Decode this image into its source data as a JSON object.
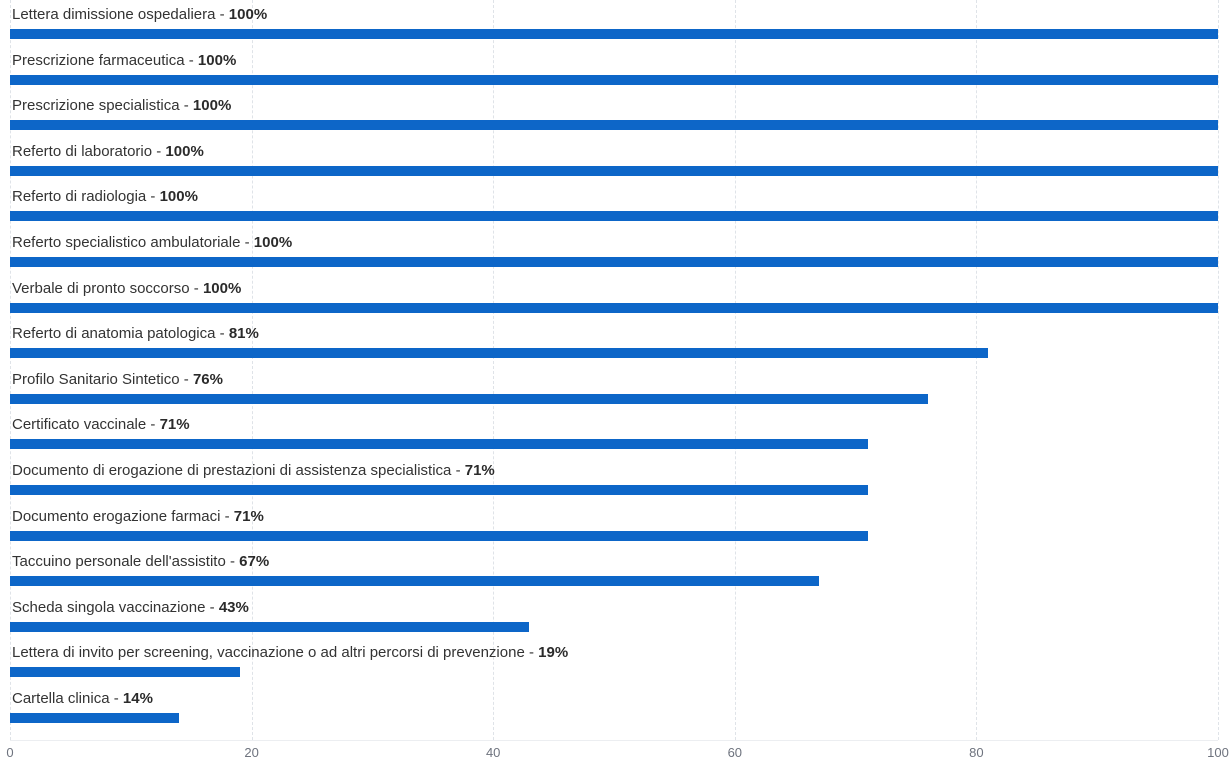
{
  "chart_data": {
    "type": "bar",
    "orientation": "horizontal",
    "categories": [
      "Lettera dimissione ospedaliera",
      "Prescrizione farmaceutica",
      "Prescrizione specialistica",
      "Referto di laboratorio",
      "Referto di radiologia",
      "Referto specialistico ambulatoriale",
      "Verbale di pronto soccorso",
      "Referto di anatomia patologica",
      "Profilo Sanitario Sintetico",
      "Certificato vaccinale",
      "Documento di erogazione di prestazioni di assistenza specialistica",
      "Documento erogazione farmaci",
      "Taccuino personale dell'assistito",
      "Scheda singola vaccinazione",
      "Lettera di invito per screening, vaccinazione o ad altri percorsi di prevenzione",
      "Cartella clinica"
    ],
    "values": [
      100,
      100,
      100,
      100,
      100,
      100,
      100,
      81,
      76,
      71,
      71,
      71,
      67,
      43,
      19,
      14
    ],
    "value_labels": [
      "100%",
      "100%",
      "100%",
      "100%",
      "100%",
      "100%",
      "100%",
      "81%",
      "76%",
      "71%",
      "71%",
      "71%",
      "67%",
      "43%",
      "19%",
      "14%"
    ],
    "separator": " - ",
    "xlim": [
      0,
      100
    ],
    "x_ticks": [
      0,
      20,
      40,
      60,
      80,
      100
    ],
    "x_tick_labels": [
      "0",
      "20",
      "40",
      "60",
      "80",
      "100"
    ],
    "grid": "vertical-dashed",
    "legend": "none",
    "bar_color": "#0d66c8",
    "label_color": "#333333",
    "tick_color": "#6e737e",
    "gridline_color": "#dfe3e8"
  }
}
